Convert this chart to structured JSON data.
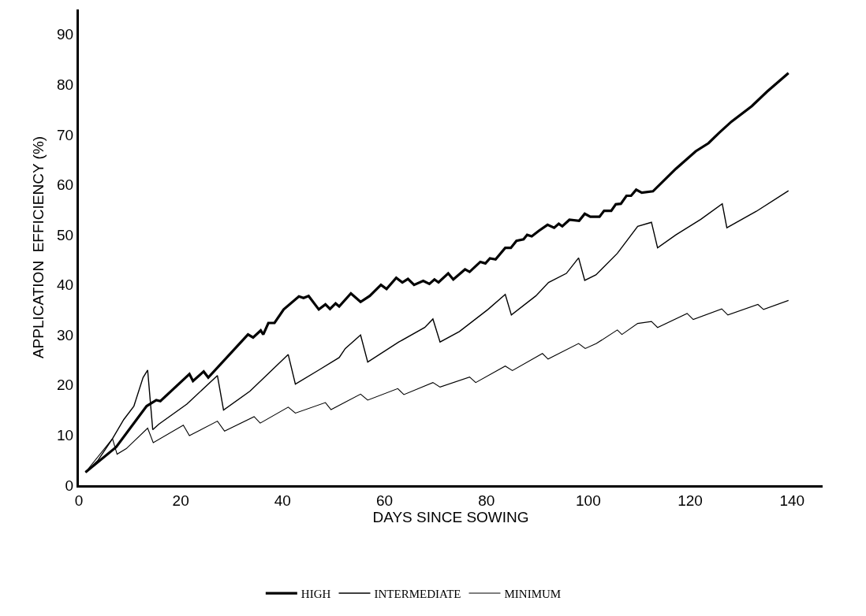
{
  "chart_data": {
    "type": "line",
    "xlabel": "DAYS SINCE SOWING",
    "ylabel": "APPLICATION  EFFICIENCY (%)",
    "xlim": [
      0,
      146
    ],
    "ylim": [
      0,
      95
    ],
    "xticks": [
      0,
      20,
      40,
      60,
      80,
      100,
      120,
      140
    ],
    "yticks": [
      0,
      10,
      20,
      30,
      40,
      50,
      60,
      70,
      80,
      90
    ],
    "legend": "bottom",
    "marker": "none",
    "line_style": "solid",
    "series": [
      {
        "name": "HIGH",
        "color": "#000000",
        "x": [
          1.3,
          7.3,
          13.3,
          15.2,
          16.0,
          21.7,
          22.4,
          24.5,
          25.4,
          33.2,
          34.2,
          35.7,
          36.2,
          37.2,
          38.4,
          40.2,
          43.2,
          44.1,
          45.1,
          47.1,
          48.4,
          49.3,
          50.4,
          51.1,
          53.4,
          55.3,
          57.1,
          59.3,
          60.4,
          62.3,
          63.5,
          64.6,
          65.8,
          67.6,
          68.8,
          69.8,
          70.6,
          72.5,
          73.5,
          75.8,
          76.7,
          78.8,
          79.8,
          80.7,
          81.8,
          83.7,
          84.8,
          85.9,
          87.3,
          88.0,
          88.9,
          90.3,
          92.0,
          93.3,
          94.2,
          94.9,
          96.3,
          98.2,
          99.3,
          100.4,
          102.2,
          103.1,
          104.5,
          105.4,
          106.4,
          107.5,
          108.4,
          109.4,
          110.5,
          112.7,
          117.2,
          121.1,
          123.6,
          125.6,
          128.1,
          132.1,
          135.1,
          139.3
        ],
        "values": [
          2.6,
          7.6,
          15.8,
          17.0,
          16.8,
          22.2,
          20.8,
          22.7,
          21.5,
          30.1,
          29.5,
          30.9,
          30.1,
          32.4,
          32.4,
          35.1,
          37.7,
          37.4,
          37.8,
          35.1,
          36.1,
          35.2,
          36.3,
          35.7,
          38.3,
          36.6,
          37.8,
          40.0,
          39.2,
          41.4,
          40.5,
          41.2,
          40.0,
          40.8,
          40.2,
          41.1,
          40.5,
          42.3,
          41.1,
          43.1,
          42.6,
          44.6,
          44.3,
          45.3,
          45.1,
          47.4,
          47.4,
          48.8,
          49.1,
          50.0,
          49.7,
          50.8,
          52.0,
          51.4,
          52.2,
          51.7,
          53.0,
          52.8,
          54.2,
          53.6,
          53.6,
          54.8,
          54.8,
          56.1,
          56.2,
          57.8,
          57.8,
          59.0,
          58.4,
          58.7,
          63.2,
          66.7,
          68.3,
          70.3,
          72.6,
          75.7,
          78.6,
          82.3
        ]
      },
      {
        "name": "INTERMEDIATE",
        "color": "#000000",
        "x": [
          1.3,
          3.7,
          6.6,
          8.8,
          10.8,
          12.6,
          13.5,
          14.5,
          15.7,
          21.2,
          27.2,
          28.4,
          33.6,
          41.1,
          42.5,
          47.1,
          51.1,
          52.3,
          55.3,
          56.7,
          62.8,
          67.9,
          69.5,
          70.9,
          74.7,
          80.3,
          83.7,
          84.9,
          89.7,
          92.2,
          95.7,
          98.1,
          99.3,
          101.5,
          105.7,
          109.7,
          112.4,
          113.6,
          117.2,
          122.1,
          126.3,
          127.2,
          133.0,
          139.3
        ],
        "values": [
          2.6,
          4.9,
          9.3,
          13.1,
          15.8,
          21.5,
          23.0,
          11.1,
          12.2,
          16.2,
          21.9,
          15.0,
          18.8,
          26.1,
          20.2,
          23.0,
          25.5,
          27.3,
          30.0,
          24.6,
          28.6,
          31.5,
          33.2,
          28.6,
          30.7,
          35.1,
          38.1,
          34.0,
          37.8,
          40.5,
          42.3,
          45.4,
          40.9,
          42.0,
          46.3,
          51.7,
          52.5,
          47.4,
          50.0,
          53.1,
          56.2,
          51.4,
          54.7,
          58.8
        ]
      },
      {
        "name": "MINIMUM",
        "color": "#000000",
        "x": [
          1.3,
          6.6,
          7.5,
          9.3,
          13.5,
          14.6,
          20.5,
          21.7,
          27.2,
          28.6,
          34.4,
          35.6,
          41.1,
          42.5,
          48.4,
          49.5,
          55.3,
          56.7,
          62.6,
          63.8,
          69.5,
          70.9,
          76.7,
          77.9,
          83.7,
          85.1,
          91.0,
          92.1,
          98.1,
          99.4,
          101.6,
          105.7,
          106.6,
          109.7,
          112.4,
          113.6,
          119.4,
          120.6,
          126.2,
          127.4,
          133.3,
          134.4,
          139.3
        ],
        "values": [
          2.6,
          9.3,
          6.2,
          7.3,
          11.4,
          8.5,
          12.0,
          9.9,
          12.8,
          10.8,
          13.7,
          12.4,
          15.6,
          14.4,
          16.5,
          15.1,
          18.2,
          17.0,
          19.3,
          18.1,
          20.5,
          19.6,
          21.6,
          20.5,
          23.8,
          22.9,
          26.3,
          25.2,
          28.3,
          27.3,
          28.3,
          31.0,
          30.1,
          32.3,
          32.7,
          31.5,
          34.3,
          33.1,
          35.2,
          34.0,
          36.1,
          35.1,
          36.9
        ]
      }
    ]
  }
}
